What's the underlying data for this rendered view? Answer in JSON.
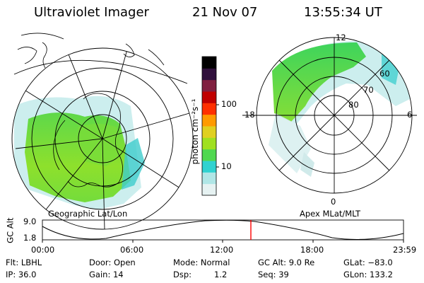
{
  "header": {
    "instrument": "Ultraviolet Imager",
    "date": "21 Nov 07",
    "time": "13:55:34 UT"
  },
  "left_map": {
    "label": "Geographic Lat/Lon"
  },
  "right_map": {
    "label": "Apex MLat/MLT",
    "mlt_labels": {
      "top": "12",
      "left": "18",
      "right": "6",
      "bottom": "0"
    },
    "lat_labels": [
      "60",
      "70",
      "80"
    ]
  },
  "colorbar": {
    "unit_label": "photon cm⁻²s⁻¹",
    "ticks": [
      "100",
      "10"
    ],
    "colors": [
      "#e6f2f2",
      "#b0e6e6",
      "#30d2d0",
      "#50d850",
      "#a0e020",
      "#e0d020",
      "#ff9a00",
      "#ff3000",
      "#c00000",
      "#802040",
      "#30103c",
      "#000000"
    ]
  },
  "timeline": {
    "ylabel": "GC Alt",
    "y_ticks": [
      "9.0",
      "1.8"
    ],
    "x_ticks": [
      "00:00",
      "06:00",
      "12:00",
      "18:00",
      "23:59"
    ],
    "marker_color": "#ff0000"
  },
  "info": {
    "filter": "Flt: LBHL",
    "ip": "IP: 36.0",
    "door": "Door: Open",
    "gain": "Gain: 14",
    "mode": "Mode: Normal",
    "dsp_label": "Dsp:",
    "dsp_value": "1.2",
    "gc_alt": "GC Alt: 9.0 Re",
    "seq": "Seq: 39",
    "glat": "GLat: −83.0",
    "glon": "GLon: 133.2"
  }
}
